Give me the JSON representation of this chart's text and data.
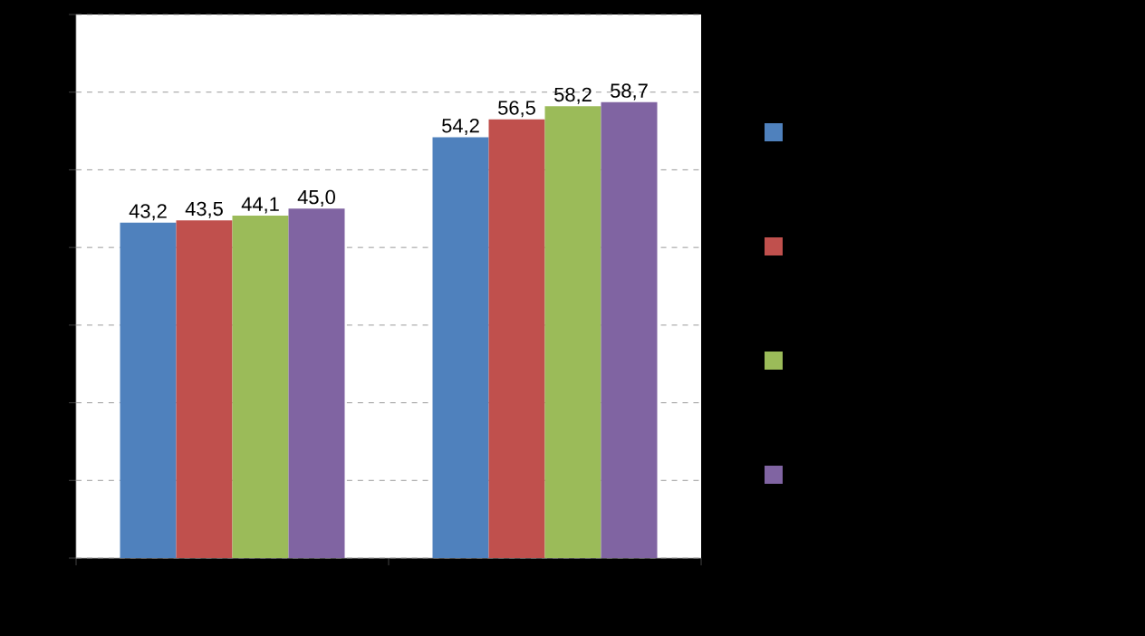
{
  "chart_data": {
    "type": "bar",
    "categories": [
      null,
      null
    ],
    "series": [
      {
        "color": "#4f81bd",
        "values": [
          43.2,
          54.2
        ],
        "value_labels": [
          "43,2",
          "54,2"
        ]
      },
      {
        "color": "#c0504d",
        "values": [
          43.5,
          56.5
        ],
        "value_labels": [
          "43,5",
          "56,5"
        ]
      },
      {
        "color": "#9bbb59",
        "values": [
          44.1,
          58.2
        ],
        "value_labels": [
          "44,1",
          "58,2"
        ]
      },
      {
        "color": "#8064a2",
        "values": [
          45.0,
          58.7
        ],
        "value_labels": [
          "45,0",
          "58,7"
        ]
      }
    ],
    "ylim": [
      0,
      70
    ],
    "yticks": [
      {
        "value": 0,
        "label": null
      },
      {
        "value": 10,
        "label": null
      },
      {
        "value": 20,
        "label": null
      },
      {
        "value": 30,
        "label": null
      },
      {
        "value": 40,
        "label": null
      },
      {
        "value": 50,
        "label": null
      },
      {
        "value": 60,
        "label": null
      },
      {
        "value": 70,
        "label": null
      }
    ],
    "grid": "y"
  }
}
